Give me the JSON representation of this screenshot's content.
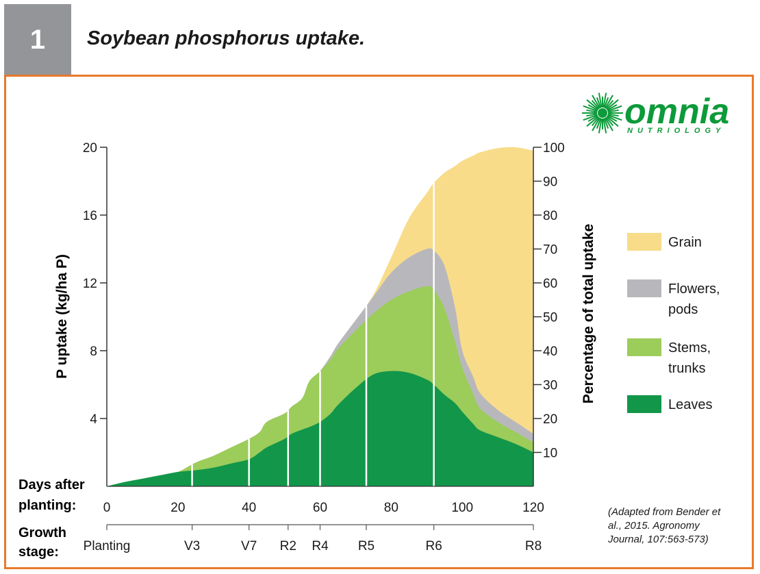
{
  "figure": {
    "number": "1",
    "title": "Soybean phosphorus uptake."
  },
  "brand": {
    "name": "omnia",
    "tagline": "NUTRIOLOGY"
  },
  "source_note": [
    "(Adapted from Bender et",
    "al., 2015. Agronomy",
    "Journal, 107:563-573)"
  ],
  "colors": {
    "grain": "#f8dc8a",
    "flowers_pods": "#b8b8bc",
    "stems_trunks": "#9ccc5a",
    "leaves": "#12964a",
    "frame": "#e8792b",
    "badge": "#939598",
    "brand": "#0d9a3a"
  },
  "chart_data": {
    "type": "area",
    "stacked": true,
    "xlabel_lines": [
      "Days after",
      "planting:"
    ],
    "ylabel": "P uptake (kg/ha P)",
    "y2label": "Percentage of total uptake",
    "xlim": [
      0,
      120
    ],
    "ylim": [
      0,
      20
    ],
    "y2lim": [
      0,
      100
    ],
    "x_ticks": [
      0,
      20,
      40,
      60,
      80,
      100,
      120
    ],
    "y_ticks": [
      4,
      8,
      12,
      16,
      20
    ],
    "y2_ticks": [
      10,
      20,
      30,
      40,
      50,
      60,
      70,
      80,
      90,
      100
    ],
    "x": [
      0,
      5,
      10,
      15,
      20,
      25,
      30,
      35,
      40,
      43,
      45,
      50,
      52,
      55,
      57,
      60,
      63,
      65,
      70,
      75,
      80,
      85,
      90,
      92,
      95,
      98,
      100,
      103,
      105,
      110,
      115,
      120
    ],
    "series": [
      {
        "name": "Leaves",
        "color_key": "leaves",
        "cumulative": [
          0,
          0.25,
          0.45,
          0.65,
          0.85,
          0.95,
          1.1,
          1.35,
          1.6,
          2.0,
          2.3,
          2.8,
          3.1,
          3.35,
          3.5,
          3.8,
          4.3,
          4.8,
          5.8,
          6.6,
          6.8,
          6.7,
          6.3,
          6.0,
          5.4,
          4.9,
          4.4,
          3.7,
          3.3,
          2.9,
          2.5,
          2.0
        ]
      },
      {
        "name": "Stems, trunks",
        "color_key": "stems_trunks",
        "cumulative": [
          0,
          0.25,
          0.45,
          0.65,
          0.85,
          1.4,
          1.8,
          2.3,
          2.8,
          3.2,
          3.8,
          4.3,
          4.7,
          5.2,
          6.2,
          6.8,
          7.5,
          8.1,
          9.2,
          10.2,
          11.0,
          11.5,
          11.8,
          11.6,
          10.5,
          8.5,
          7.0,
          5.5,
          4.6,
          3.8,
          3.2,
          2.6
        ]
      },
      {
        "name": "Flowers, pods",
        "color_key": "flowers_pods",
        "cumulative": [
          0,
          0.25,
          0.45,
          0.65,
          0.85,
          1.4,
          1.8,
          2.3,
          2.8,
          3.2,
          3.8,
          4.3,
          4.7,
          5.2,
          6.2,
          6.8,
          7.7,
          8.4,
          9.8,
          11.2,
          12.6,
          13.5,
          14.0,
          13.9,
          13.0,
          10.5,
          8.0,
          6.5,
          5.5,
          4.5,
          3.8,
          3.1
        ]
      },
      {
        "name": "Grain",
        "color_key": "grain",
        "cumulative": [
          0,
          0.25,
          0.45,
          0.65,
          0.85,
          1.4,
          1.8,
          2.3,
          2.8,
          3.2,
          3.8,
          4.3,
          4.7,
          5.2,
          6.2,
          6.8,
          7.7,
          8.4,
          9.8,
          11.3,
          13.5,
          15.8,
          17.3,
          17.9,
          18.5,
          18.9,
          19.2,
          19.5,
          19.7,
          19.95,
          20.0,
          19.8
        ]
      }
    ],
    "legend_position": "right",
    "legend": [
      {
        "lines": [
          "Grain"
        ],
        "color_key": "grain"
      },
      {
        "lines": [
          "Flowers,",
          "pods"
        ],
        "color_key": "flowers_pods"
      },
      {
        "lines": [
          "Stems,",
          "trunks"
        ],
        "color_key": "stems_trunks"
      },
      {
        "lines": [
          "Leaves"
        ],
        "color_key": "leaves"
      }
    ],
    "growth_stages": {
      "label_lines": [
        "Growth",
        "stage:"
      ],
      "stages": [
        {
          "label": "Planting",
          "day": 0
        },
        {
          "label": "V3",
          "day": 24
        },
        {
          "label": "V7",
          "day": 40
        },
        {
          "label": "R2",
          "day": 51
        },
        {
          "label": "R4",
          "day": 60
        },
        {
          "label": "R5",
          "day": 73
        },
        {
          "label": "R6",
          "day": 92
        },
        {
          "label": "R8",
          "day": 120
        }
      ]
    },
    "grid": false
  }
}
